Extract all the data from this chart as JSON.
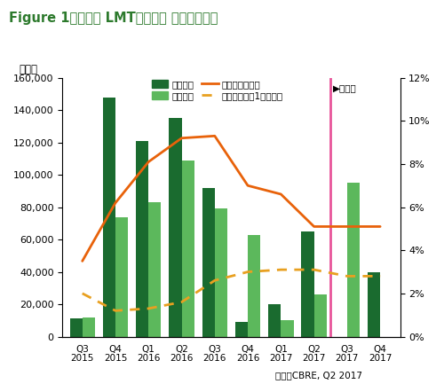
{
  "title": "Figure 1：首都圈 LMT物流施設 需給バランス",
  "xlabel_unit": "（嵪）",
  "source": "出所：CBRE, Q2 2017",
  "forecast_label": "▶予測値",
  "categories": [
    "Q3\n2015",
    "Q4\n2015",
    "Q1\n2016",
    "Q2\n2016",
    "Q3\n2016",
    "Q4\n2016",
    "Q1\n2017",
    "Q2\n2017",
    "Q3\n2017",
    "Q4\n2017"
  ],
  "supply": [
    11000,
    148000,
    121000,
    135000,
    92000,
    9000,
    20000,
    65000,
    0,
    40000
  ],
  "demand": [
    12000,
    74000,
    83000,
    109000,
    79000,
    63000,
    10000,
    26000,
    95000,
    0
  ],
  "vacancy_all": [
    3.5,
    6.2,
    8.1,
    9.2,
    9.3,
    7.0,
    6.6,
    5.1,
    5.1,
    5.1
  ],
  "vacancy_old": [
    2.0,
    1.2,
    1.3,
    1.6,
    2.6,
    3.0,
    3.1,
    3.1,
    2.8,
    2.8
  ],
  "forecast_index": 8,
  "supply_color": "#1a6b2f",
  "demand_color": "#5cb85c",
  "vacancy_all_color": "#e8620a",
  "vacancy_old_color": "#e8a020",
  "forecast_line_color": "#e8559a",
  "title_color": "#2d7a2d",
  "bg_color": "#ffffff",
  "ylim_left": [
    0,
    160000
  ],
  "ylim_right": [
    0,
    12
  ],
  "yticks_left": [
    0,
    20000,
    40000,
    60000,
    80000,
    100000,
    120000,
    140000,
    160000
  ],
  "yticks_right": [
    0,
    2,
    4,
    6,
    8,
    10,
    12
  ],
  "legend_supply": "新規供給",
  "legend_demand": "新規需要",
  "legend_vacancy_all": "空室率（全体）",
  "legend_vacancy_old": "空室率（競工1年以上）"
}
